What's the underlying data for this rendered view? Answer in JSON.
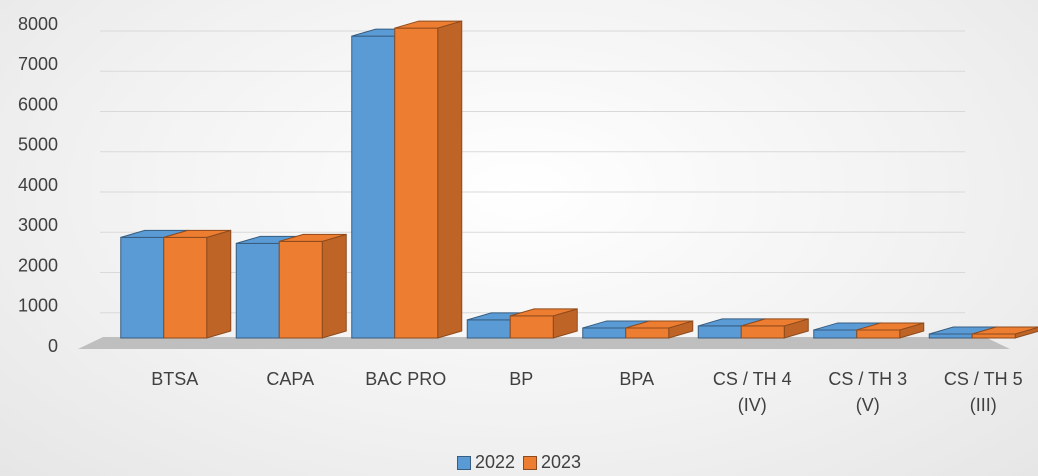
{
  "chart_data": {
    "type": "bar3d",
    "categories": [
      "BTSA",
      "CAPA",
      "BAC PRO",
      "BP",
      "BPA",
      "CS / TH 4 (IV)",
      "CS / TH 3 (V)",
      "CS / TH 5 (III)"
    ],
    "series": [
      {
        "name": "2022",
        "color": "#5b9bd5",
        "values": [
          2500,
          2350,
          7500,
          450,
          250,
          300,
          200,
          100
        ]
      },
      {
        "name": "2023",
        "color": "#ed7d31",
        "values": [
          2500,
          2400,
          7700,
          550,
          250,
          300,
          200,
          100
        ]
      }
    ],
    "ylim": [
      0,
      8000
    ],
    "yticks": [
      0,
      1000,
      2000,
      3000,
      4000,
      5000,
      6000,
      7000,
      8000
    ],
    "grid": true,
    "legend": "bottom"
  }
}
